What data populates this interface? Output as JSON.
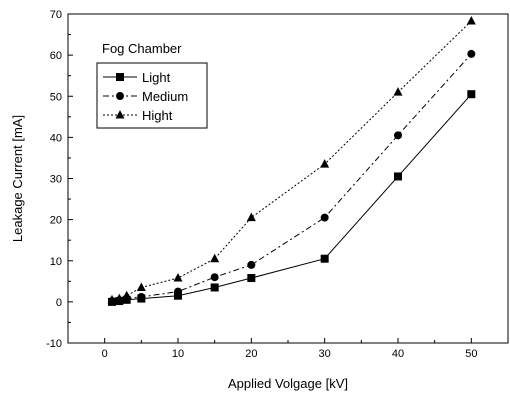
{
  "chart_data": {
    "type": "line",
    "title": "",
    "annotation": "Fog Chamber",
    "xlabel": "Applied Volgage [kV]",
    "ylabel": "Leakage Current [mA]",
    "xlim": [
      -5,
      55
    ],
    "ylim": [
      -10,
      70
    ],
    "xticks": [
      0,
      10,
      20,
      30,
      40,
      50
    ],
    "yticks": [
      -10,
      0,
      10,
      20,
      30,
      40,
      50,
      60,
      70
    ],
    "grid": false,
    "legend_position": "top-left",
    "series": [
      {
        "name": "Light",
        "marker": "square",
        "dash": "solid",
        "x": [
          1,
          2,
          3,
          5,
          10,
          15,
          20,
          30,
          40,
          50
        ],
        "y": [
          0,
          0.2,
          0.5,
          0.8,
          1.5,
          3.5,
          5.8,
          10.5,
          30.5,
          50.5
        ]
      },
      {
        "name": "Medium",
        "marker": "circle",
        "dash": "dashdot",
        "x": [
          1,
          2,
          3,
          5,
          10,
          15,
          20,
          30,
          40,
          50
        ],
        "y": [
          0.2,
          0.4,
          0.8,
          1.2,
          2.5,
          6,
          9,
          20.5,
          40.5,
          60.3
        ]
      },
      {
        "name": "Hight",
        "marker": "triangle",
        "dash": "dotted",
        "x": [
          1,
          2,
          3,
          5,
          10,
          15,
          20,
          30,
          40,
          50
        ],
        "y": [
          0.5,
          0.8,
          1.5,
          3.5,
          5.8,
          10.5,
          20.5,
          33.5,
          51,
          68.3
        ]
      }
    ]
  }
}
